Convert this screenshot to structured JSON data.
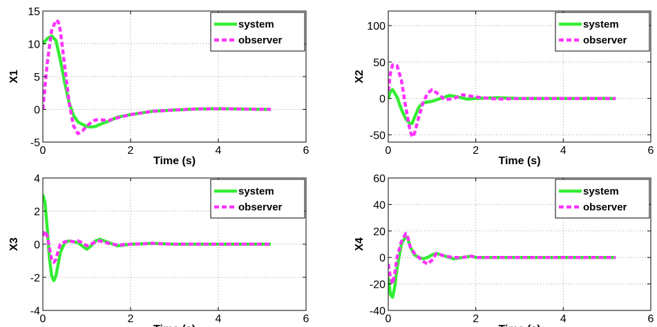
{
  "colors": {
    "system": "#33ee33",
    "observer": "#ff33ff",
    "grid": "#999999",
    "axes": "#000000"
  },
  "chart_data": [
    {
      "type": "line",
      "xlabel": "Time (s)",
      "ylabel": "X1",
      "xlim": [
        0,
        6
      ],
      "ylim": [
        -5,
        15
      ],
      "xticks": [
        0,
        2,
        4,
        6
      ],
      "yticks": [
        -5,
        0,
        5,
        10,
        15
      ],
      "grid": true,
      "legend": "top-right",
      "series": [
        {
          "name": "system",
          "style": "solid",
          "x": [
            0,
            0.1,
            0.2,
            0.3,
            0.4,
            0.5,
            0.6,
            0.7,
            0.8,
            0.9,
            1.0,
            1.1,
            1.2,
            1.3,
            1.5,
            1.7,
            2.0,
            2.5,
            3.0,
            3.5,
            4.0,
            4.5,
            5.0,
            5.2
          ],
          "y": [
            10,
            10.8,
            11.2,
            10.5,
            7.5,
            4.0,
            1.0,
            -0.9,
            -1.9,
            -2.3,
            -2.6,
            -2.7,
            -2.6,
            -2.3,
            -1.8,
            -1.2,
            -0.8,
            -0.3,
            -0.1,
            0.05,
            0.1,
            0.05,
            0.0,
            0.0
          ]
        },
        {
          "name": "observer",
          "style": "dashed",
          "x": [
            0,
            0.1,
            0.2,
            0.3,
            0.35,
            0.4,
            0.5,
            0.6,
            0.7,
            0.8,
            0.9,
            1.0,
            1.1,
            1.2,
            1.3,
            1.5,
            1.7,
            2.0,
            2.5,
            3.0,
            3.5,
            4.0,
            4.5,
            5.0,
            5.2
          ],
          "y": [
            0,
            7.0,
            12.0,
            13.6,
            13.4,
            12.0,
            6.5,
            1.0,
            -2.5,
            -3.7,
            -3.3,
            -2.6,
            -2.0,
            -1.6,
            -1.6,
            -1.7,
            -1.3,
            -0.8,
            -0.3,
            -0.1,
            0.05,
            0.1,
            0.05,
            0.0,
            0.0
          ]
        }
      ]
    },
    {
      "type": "line",
      "xlabel": "Time (s)",
      "ylabel": "X2",
      "xlim": [
        0,
        6
      ],
      "ylim": [
        -60,
        120
      ],
      "xticks": [
        0,
        2,
        4,
        6
      ],
      "yticks": [
        -50,
        0,
        50,
        100
      ],
      "grid": true,
      "legend": "top-right",
      "series": [
        {
          "name": "system",
          "style": "solid",
          "x": [
            0,
            0.05,
            0.1,
            0.2,
            0.3,
            0.4,
            0.5,
            0.55,
            0.6,
            0.7,
            0.8,
            0.9,
            1.0,
            1.2,
            1.4,
            1.6,
            1.8,
            2.0,
            2.5,
            3.0,
            4.0,
            5.2
          ],
          "y": [
            0,
            10,
            12,
            2,
            -15,
            -28,
            -35,
            -34,
            -26,
            -12,
            -6,
            -5,
            -4,
            0,
            4,
            2,
            -1,
            0,
            1,
            0,
            0,
            0
          ]
        },
        {
          "name": "observer",
          "style": "dashed",
          "x": [
            0,
            0.05,
            0.1,
            0.2,
            0.3,
            0.4,
            0.5,
            0.55,
            0.6,
            0.7,
            0.8,
            0.9,
            1.0,
            1.1,
            1.3,
            1.5,
            1.7,
            2.0,
            2.5,
            3.0,
            4.0,
            5.2
          ],
          "y": [
            10,
            35,
            46,
            45,
            25,
            -12,
            -45,
            -53,
            -48,
            -25,
            -5,
            7,
            12,
            8,
            -2,
            0,
            5,
            2,
            -1,
            0,
            0,
            0
          ]
        }
      ]
    },
    {
      "type": "line",
      "xlabel": "Time (s)",
      "ylabel": "X3",
      "xlim": [
        0,
        6
      ],
      "ylim": [
        -4,
        4
      ],
      "xticks": [
        0,
        2,
        4,
        6
      ],
      "yticks": [
        -4,
        -2,
        0,
        2,
        4
      ],
      "grid": true,
      "legend": "top-right",
      "series": [
        {
          "name": "system",
          "style": "solid",
          "x": [
            0,
            0.05,
            0.1,
            0.15,
            0.2,
            0.25,
            0.3,
            0.35,
            0.4,
            0.5,
            0.6,
            0.7,
            0.8,
            0.9,
            1.0,
            1.1,
            1.2,
            1.3,
            1.5,
            1.7,
            2.0,
            2.5,
            3.0,
            4.0,
            5.2
          ],
          "y": [
            3.0,
            2.5,
            1.0,
            -0.8,
            -1.9,
            -2.2,
            -1.9,
            -1.2,
            -0.5,
            0.1,
            0.2,
            0.15,
            0.1,
            -0.1,
            -0.3,
            -0.1,
            0.2,
            0.3,
            0.1,
            -0.1,
            0.0,
            0.05,
            0.0,
            0.0,
            0.0
          ]
        },
        {
          "name": "observer",
          "style": "dashed",
          "x": [
            0,
            0.05,
            0.1,
            0.15,
            0.2,
            0.25,
            0.3,
            0.35,
            0.4,
            0.5,
            0.6,
            0.7,
            0.8,
            0.9,
            1.0,
            1.1,
            1.2,
            1.3,
            1.5,
            1.7,
            2.0,
            2.5,
            3.0,
            4.0,
            5.2
          ],
          "y": [
            0.5,
            0.8,
            0.5,
            -0.2,
            -0.9,
            -1.1,
            -0.9,
            -0.4,
            0.0,
            0.15,
            0.2,
            0.15,
            0.2,
            0.1,
            -0.1,
            0.0,
            0.15,
            0.2,
            0.05,
            -0.05,
            0.0,
            0.05,
            0.0,
            0.0,
            0.0
          ]
        }
      ]
    },
    {
      "type": "line",
      "xlabel": "Time (s)",
      "ylabel": "X4",
      "xlim": [
        0,
        6
      ],
      "ylim": [
        -40,
        60
      ],
      "xticks": [
        0,
        2,
        4,
        6
      ],
      "yticks": [
        -40,
        -20,
        0,
        20,
        40,
        60
      ],
      "grid": true,
      "legend": "top-right",
      "series": [
        {
          "name": "system",
          "style": "solid",
          "x": [
            0,
            0.05,
            0.1,
            0.15,
            0.2,
            0.3,
            0.4,
            0.45,
            0.5,
            0.6,
            0.7,
            0.8,
            0.9,
            1.0,
            1.1,
            1.3,
            1.5,
            1.7,
            1.9,
            2.0,
            2.5,
            3.0,
            4.0,
            5.2
          ],
          "y": [
            -15,
            -28,
            -30,
            -22,
            -8,
            10,
            16,
            14,
            8,
            2,
            0,
            -1,
            0,
            2,
            3,
            1,
            -1,
            0,
            1,
            0,
            0,
            0,
            0,
            0
          ]
        },
        {
          "name": "observer",
          "style": "dashed",
          "x": [
            0,
            0.05,
            0.1,
            0.15,
            0.2,
            0.3,
            0.4,
            0.45,
            0.5,
            0.6,
            0.7,
            0.8,
            0.9,
            1.0,
            1.1,
            1.3,
            1.5,
            1.7,
            1.9,
            2.0,
            2.5,
            3.0,
            4.0,
            5.2
          ],
          "y": [
            -5,
            -15,
            -20,
            -12,
            0,
            12,
            18,
            15,
            8,
            3,
            0,
            -3,
            -5,
            -2,
            3,
            1,
            0,
            0,
            1,
            0,
            0,
            0,
            0,
            0
          ]
        }
      ]
    }
  ]
}
